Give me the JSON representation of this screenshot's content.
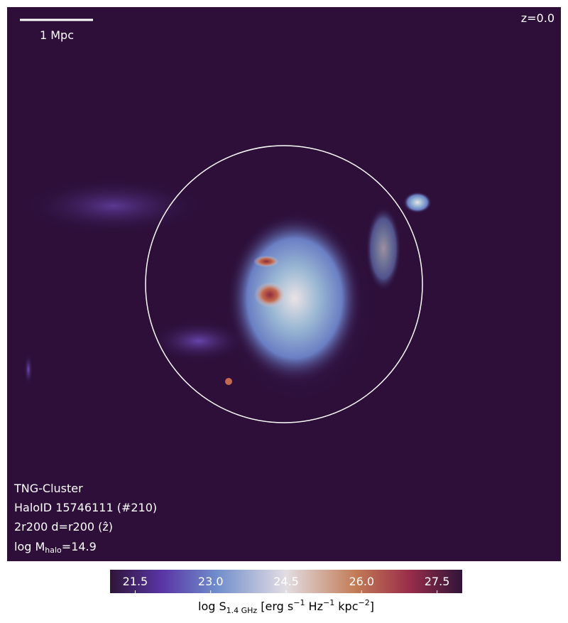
{
  "scale_bar": {
    "label": "1 Mpc"
  },
  "redshift": "z=0.0",
  "info": {
    "simulation": "TNG-Cluster",
    "halo": "HaloID 15746111 (#210)",
    "projection": "2r200 d=r200 (ẑ)",
    "mass": {
      "prefix": "log M",
      "subscript": "halo",
      "suffix": "=14.9"
    }
  },
  "colorbar": {
    "lim": [
      21.0,
      28.0
    ],
    "ticks": [
      21.5,
      {
        "value": 23,
        "label": "23.0"
      },
      24.5,
      {
        "value": 26,
        "label": "26.0"
      },
      27.5
    ],
    "label": {
      "prefix": "log S",
      "subscript": "1.4 GHz",
      "part1": " [erg s",
      "sup1": "−1",
      "part2": " Hz",
      "sup2": "−1",
      "part3": " kpc",
      "sup3": "−2",
      "part4": "]"
    }
  }
}
